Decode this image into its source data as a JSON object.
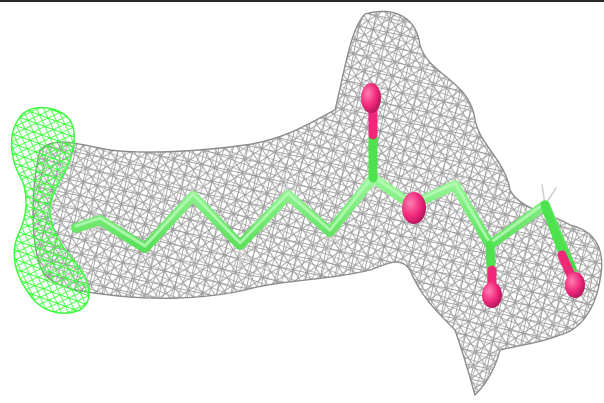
{
  "scene": {
    "background_color": "#ffffff",
    "frame_color": "#2a2a2a",
    "mesh_color": "#a6a6a6",
    "mesh_color_dark": "#7f7f7f",
    "difference_map_color": "#3cff3c",
    "carbon_color": "#74f274",
    "carbon_color_dark": "#4fe24f",
    "oxygen_color": "#f0287a",
    "oxygen_color_dark": "#cc1f66",
    "hydrogen_color": "#d9d9d9"
  }
}
